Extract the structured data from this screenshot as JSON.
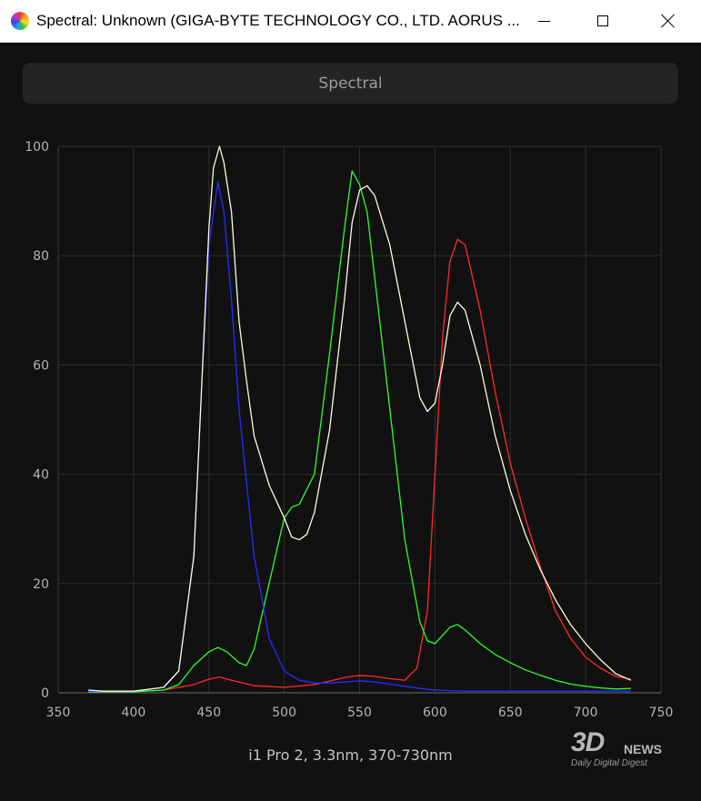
{
  "window": {
    "title": "Spectral: Unknown (GIGA-BYTE TECHNOLOGY CO., LTD. AORUS ...",
    "app_icon": "spectral-rainbow-icon",
    "controls": [
      "minimize-icon",
      "maximize-icon",
      "close-icon"
    ]
  },
  "mode_button": {
    "label": "Spectral"
  },
  "footer": {
    "label": "i1 Pro 2, 3.3nm, 370-730nm"
  },
  "watermark": {
    "brand": "3D",
    "brand2": "NEWS",
    "tagline": "Daily Digital Digest"
  },
  "colors": {
    "background": "#111111",
    "grid": "#2e2e2e",
    "tick_text": "#b4b4b4"
  },
  "chart_data": {
    "type": "line",
    "title": "",
    "xlabel": "",
    "ylabel": "",
    "xlim": [
      350,
      750
    ],
    "ylim": [
      0,
      100
    ],
    "xticks": [
      350,
      400,
      450,
      500,
      550,
      600,
      650,
      700,
      750
    ],
    "yticks": [
      0,
      20,
      40,
      60,
      80,
      100
    ],
    "grid": true,
    "series": [
      {
        "color": "#ff2a2a",
        "points": [
          [
            370,
            0.3
          ],
          [
            400,
            0.2
          ],
          [
            420,
            0.5
          ],
          [
            440,
            1.5
          ],
          [
            450,
            2.5
          ],
          [
            457,
            2.9
          ],
          [
            465,
            2.3
          ],
          [
            480,
            1.3
          ],
          [
            500,
            1
          ],
          [
            520,
            1.5
          ],
          [
            540,
            2.8
          ],
          [
            550,
            3.2
          ],
          [
            560,
            3
          ],
          [
            570,
            2.6
          ],
          [
            580,
            2.3
          ],
          [
            588,
            4.5
          ],
          [
            595,
            15
          ],
          [
            600,
            40
          ],
          [
            605,
            65
          ],
          [
            610,
            79
          ],
          [
            615,
            83
          ],
          [
            620,
            82
          ],
          [
            630,
            70
          ],
          [
            640,
            55
          ],
          [
            650,
            42
          ],
          [
            660,
            32
          ],
          [
            670,
            23
          ],
          [
            680,
            15
          ],
          [
            690,
            10
          ],
          [
            700,
            6.5
          ],
          [
            710,
            4.5
          ],
          [
            720,
            3
          ],
          [
            730,
            2.5
          ]
        ]
      },
      {
        "color": "#2aff2a",
        "points": [
          [
            370,
            0.2
          ],
          [
            400,
            0.2
          ],
          [
            420,
            0.5
          ],
          [
            430,
            1.5
          ],
          [
            440,
            5
          ],
          [
            450,
            7.5
          ],
          [
            456,
            8.3
          ],
          [
            462,
            7.5
          ],
          [
            470,
            5.5
          ],
          [
            475,
            5
          ],
          [
            480,
            8
          ],
          [
            490,
            20
          ],
          [
            500,
            32
          ],
          [
            505,
            34
          ],
          [
            510,
            34.5
          ],
          [
            520,
            40
          ],
          [
            530,
            62
          ],
          [
            540,
            85
          ],
          [
            545,
            95.5
          ],
          [
            550,
            93
          ],
          [
            555,
            88
          ],
          [
            560,
            76
          ],
          [
            570,
            52
          ],
          [
            580,
            28
          ],
          [
            590,
            13
          ],
          [
            595,
            9.5
          ],
          [
            600,
            9
          ],
          [
            610,
            12
          ],
          [
            615,
            12.5
          ],
          [
            620,
            11.5
          ],
          [
            630,
            9
          ],
          [
            640,
            7
          ],
          [
            650,
            5.5
          ],
          [
            660,
            4.2
          ],
          [
            670,
            3.2
          ],
          [
            680,
            2.3
          ],
          [
            690,
            1.6
          ],
          [
            700,
            1.2
          ],
          [
            710,
            0.9
          ],
          [
            720,
            0.7
          ],
          [
            730,
            0.8
          ]
        ]
      },
      {
        "color": "#2a2aff",
        "points": [
          [
            370,
            0.3
          ],
          [
            400,
            0.3
          ],
          [
            420,
            1
          ],
          [
            430,
            4
          ],
          [
            440,
            25
          ],
          [
            445,
            55
          ],
          [
            450,
            82
          ],
          [
            456,
            93.5
          ],
          [
            460,
            88
          ],
          [
            465,
            72
          ],
          [
            470,
            52
          ],
          [
            480,
            25
          ],
          [
            490,
            10
          ],
          [
            500,
            4
          ],
          [
            510,
            2.3
          ],
          [
            520,
            1.8
          ],
          [
            530,
            1.8
          ],
          [
            540,
            2
          ],
          [
            550,
            2.2
          ],
          [
            560,
            2
          ],
          [
            570,
            1.6
          ],
          [
            580,
            1.2
          ],
          [
            590,
            0.8
          ],
          [
            600,
            0.5
          ],
          [
            620,
            0.3
          ],
          [
            650,
            0.3
          ],
          [
            700,
            0.3
          ],
          [
            730,
            0.3
          ]
        ]
      },
      {
        "color": "#fffbe0",
        "points": [
          [
            370,
            0.5
          ],
          [
            380,
            0.3
          ],
          [
            400,
            0.3
          ],
          [
            420,
            1
          ],
          [
            430,
            4
          ],
          [
            440,
            25
          ],
          [
            445,
            55
          ],
          [
            450,
            85
          ],
          [
            453,
            96
          ],
          [
            457,
            100
          ],
          [
            460,
            97
          ],
          [
            465,
            88
          ],
          [
            470,
            68
          ],
          [
            475,
            57
          ],
          [
            480,
            47
          ],
          [
            490,
            38
          ],
          [
            500,
            32
          ],
          [
            505,
            28.5
          ],
          [
            510,
            28
          ],
          [
            515,
            29
          ],
          [
            520,
            33
          ],
          [
            530,
            48
          ],
          [
            540,
            72
          ],
          [
            545,
            86
          ],
          [
            550,
            92
          ],
          [
            555,
            92.8
          ],
          [
            560,
            91
          ],
          [
            570,
            82
          ],
          [
            580,
            68
          ],
          [
            590,
            54
          ],
          [
            595,
            51.5
          ],
          [
            600,
            53
          ],
          [
            605,
            60
          ],
          [
            610,
            69
          ],
          [
            615,
            71.5
          ],
          [
            620,
            70
          ],
          [
            630,
            60
          ],
          [
            640,
            47
          ],
          [
            650,
            37
          ],
          [
            660,
            29
          ],
          [
            670,
            22.5
          ],
          [
            680,
            17
          ],
          [
            690,
            12.5
          ],
          [
            700,
            9
          ],
          [
            710,
            6
          ],
          [
            720,
            3.5
          ],
          [
            730,
            2.3
          ]
        ]
      }
    ]
  }
}
